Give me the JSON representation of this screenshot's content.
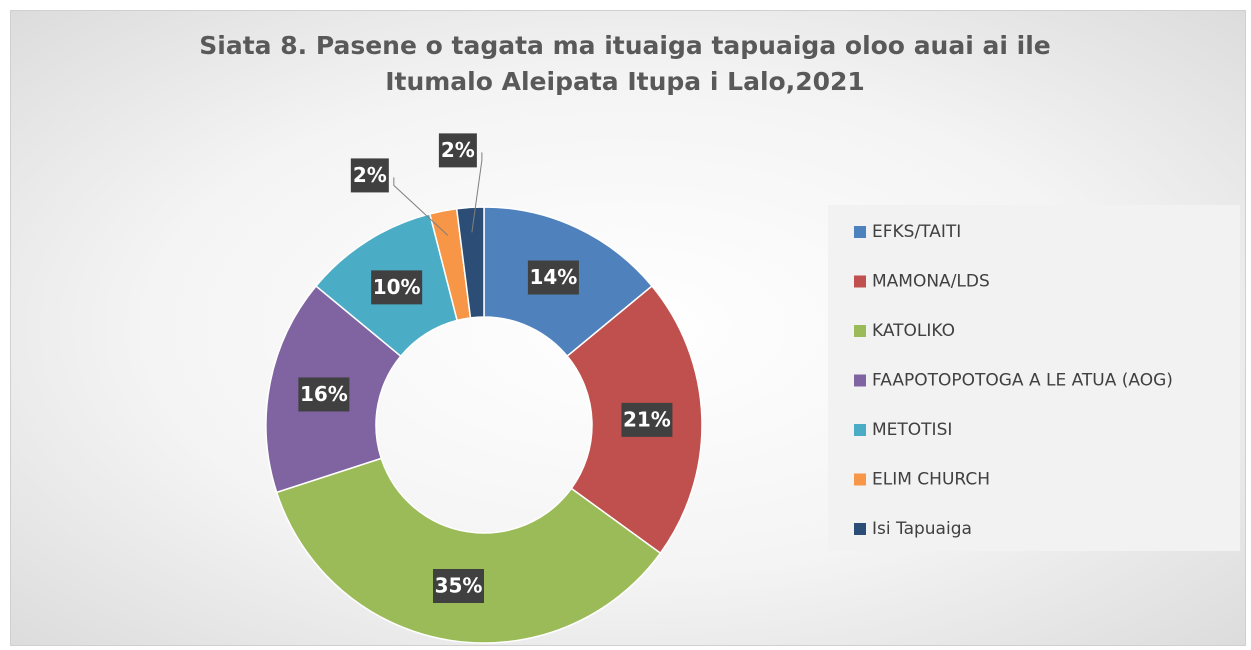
{
  "chart_data": {
    "type": "donut",
    "title": "Siata 8. Pasene o tagata ma ituaiga tapuaiga oloo auai ai ile Itumalo Aleipata Itupa i Lalo,2021",
    "categories": [
      "EFKS/TAITI",
      "MAMONA/LDS",
      "KATOLIKO",
      "FAAPOTOPOTOGA A LE ATUA (AOG)",
      "METOTISI",
      "ELIM CHURCH",
      "Isi Tapuaiga"
    ],
    "values": [
      14,
      21,
      35,
      16,
      10,
      2,
      2
    ],
    "value_labels": [
      "14%",
      "21%",
      "35%",
      "16%",
      "10%",
      "2%",
      "2%"
    ],
    "colors": [
      "#4f81bd",
      "#c0504d",
      "#9bbb59",
      "#8064a2",
      "#4bacc6",
      "#f79646",
      "#2c4d75"
    ],
    "legend": "right"
  }
}
